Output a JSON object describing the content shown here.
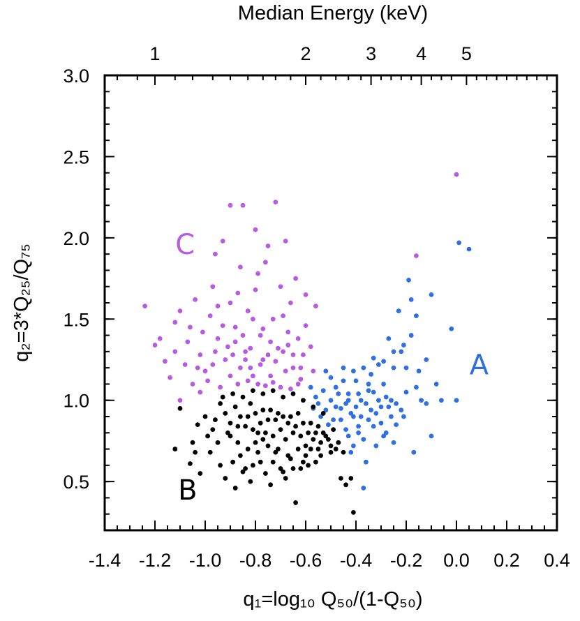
{
  "chart_data": {
    "type": "scatter",
    "xlabel": "q₁=log₁₀ Q₅₀/(1-Q₅₀)",
    "ylabel": "q₂=3*Q₂₅/Q₇₅",
    "top_axis_label": "Median Energy (keV)",
    "xlim": [
      -1.4,
      0.4
    ],
    "ylim": [
      0.2,
      3.0
    ],
    "x_ticks": [
      "-1.4",
      "-1.2",
      "-1.0",
      "-0.8",
      "-0.6",
      "-0.4",
      "-0.2",
      "0.0",
      "0.2",
      "0.4"
    ],
    "y_ticks": [
      "0.5",
      "1.0",
      "1.5",
      "2.0",
      "2.5",
      "3.0"
    ],
    "top_ticks": [
      {
        "label": "1",
        "q1": -1.2
      },
      {
        "label": "2",
        "q1": -0.6
      },
      {
        "label": "3",
        "q1": -0.34
      },
      {
        "label": "4",
        "q1": -0.14
      },
      {
        "label": "5",
        "q1": 0.04
      }
    ],
    "grid": false,
    "group_labels": [
      {
        "text": "A",
        "color": "#2f6fe0",
        "q1": 0.09,
        "q2": 1.22
      },
      {
        "text": "B",
        "color": "#000000",
        "q1": -1.07,
        "q2": 0.45
      },
      {
        "text": "C",
        "color": "#b65ce0",
        "q1": -1.08,
        "q2": 1.96
      }
    ],
    "series": [
      {
        "name": "C",
        "color": "#b65ce0",
        "points": [
          [
            -1.24,
            1.58
          ],
          [
            -1.18,
            1.38
          ],
          [
            -1.14,
            1.14
          ],
          [
            -1.2,
            1.34
          ],
          [
            -1.12,
            1.3
          ],
          [
            -1.1,
            1.55
          ],
          [
            -1.08,
            1.22
          ],
          [
            -1.06,
            1.45
          ],
          [
            -1.04,
            1.62
          ],
          [
            -1.05,
            1.1
          ],
          [
            -1.02,
            1.28
          ],
          [
            -1.0,
            1.18
          ],
          [
            -0.98,
            1.52
          ],
          [
            -0.97,
            1.7
          ],
          [
            -0.96,
            1.9
          ],
          [
            -0.95,
            1.38
          ],
          [
            -0.93,
            1.98
          ],
          [
            -0.92,
            1.25
          ],
          [
            -0.9,
            1.6
          ],
          [
            -0.9,
            2.2
          ],
          [
            -0.88,
            1.45
          ],
          [
            -0.86,
            1.82
          ],
          [
            -0.85,
            2.2
          ],
          [
            -0.84,
            1.3
          ],
          [
            -0.83,
            1.55
          ],
          [
            -0.82,
            1.2
          ],
          [
            -0.8,
            2.05
          ],
          [
            -0.8,
            1.68
          ],
          [
            -0.78,
            1.4
          ],
          [
            -0.77,
            1.25
          ],
          [
            -0.76,
            1.85
          ],
          [
            -0.75,
            1.95
          ],
          [
            -0.74,
            1.15
          ],
          [
            -0.73,
            1.5
          ],
          [
            -0.72,
            2.22
          ],
          [
            -0.71,
            1.32
          ],
          [
            -0.7,
            1.7
          ],
          [
            -0.68,
            1.18
          ],
          [
            -0.68,
            1.98
          ],
          [
            -0.67,
            1.42
          ],
          [
            -0.66,
            1.6
          ],
          [
            -0.65,
            1.28
          ],
          [
            -0.64,
            1.75
          ],
          [
            -0.62,
            1.2
          ],
          [
            -0.6,
            1.46
          ],
          [
            -0.6,
            1.65
          ],
          [
            -0.58,
            1.33
          ],
          [
            -0.56,
            1.58
          ],
          [
            -0.16,
            1.89
          ],
          [
            0.0,
            2.39
          ],
          [
            -1.1,
            1.0
          ],
          [
            -1.02,
            1.05
          ],
          [
            -0.99,
            1.12
          ],
          [
            -0.94,
            1.08
          ],
          [
            -0.9,
            1.15
          ],
          [
            -0.87,
            1.1
          ],
          [
            -0.83,
            1.12
          ],
          [
            -0.79,
            1.1
          ],
          [
            -0.76,
            1.09
          ],
          [
            -0.73,
            1.11
          ],
          [
            -0.7,
            1.08
          ],
          [
            -0.66,
            1.07
          ],
          [
            -0.63,
            1.1
          ],
          [
            -0.62,
            1.13
          ],
          [
            -1.16,
            1.24
          ],
          [
            -1.12,
            1.48
          ],
          [
            -1.07,
            1.36
          ],
          [
            -1.01,
            1.42
          ],
          [
            -0.95,
            1.58
          ],
          [
            -0.91,
            1.33
          ],
          [
            -0.87,
            1.66
          ],
          [
            -0.81,
            1.5
          ],
          [
            -0.79,
            1.78
          ],
          [
            -0.74,
            1.36
          ],
          [
            -0.69,
            1.52
          ],
          [
            -0.65,
            1.2
          ],
          [
            -0.61,
            1.28
          ],
          [
            -0.57,
            1.18
          ],
          [
            -0.97,
            1.22
          ],
          [
            -0.93,
            1.46
          ],
          [
            -0.89,
            1.28
          ],
          [
            -0.85,
            1.4
          ],
          [
            -0.82,
            1.32
          ],
          [
            -0.78,
            1.22
          ],
          [
            -0.75,
            1.28
          ],
          [
            -0.72,
            1.24
          ],
          [
            -0.69,
            1.3
          ],
          [
            -0.86,
            1.2
          ],
          [
            -0.84,
            1.25
          ],
          [
            -0.96,
            1.3
          ],
          [
            -1.03,
            1.2
          ],
          [
            -0.88,
            1.36
          ],
          [
            -0.81,
            1.15
          ],
          [
            -0.77,
            1.44
          ],
          [
            -0.67,
            1.34
          ],
          [
            -0.63,
            1.38
          ]
        ]
      },
      {
        "name": "A",
        "color": "#2f6fe0",
        "points": [
          [
            0.05,
            1.93
          ],
          [
            0.01,
            1.97
          ],
          [
            0.0,
            1.0
          ],
          [
            -0.02,
            1.44
          ],
          [
            -0.08,
            1.1
          ],
          [
            -0.06,
            1.0
          ],
          [
            -0.1,
            0.78
          ],
          [
            -0.1,
            1.65
          ],
          [
            -0.12,
            1.25
          ],
          [
            -0.14,
            1.0
          ],
          [
            -0.15,
            1.18
          ],
          [
            -0.16,
            1.52
          ],
          [
            -0.17,
            0.68
          ],
          [
            -0.18,
            1.62
          ],
          [
            -0.19,
            1.74
          ],
          [
            -0.2,
            1.05
          ],
          [
            -0.21,
            0.9
          ],
          [
            -0.22,
            1.3
          ],
          [
            -0.23,
            1.55
          ],
          [
            -0.24,
            0.85
          ],
          [
            -0.25,
            1.2
          ],
          [
            -0.26,
            1.0
          ],
          [
            -0.27,
            1.38
          ],
          [
            -0.28,
            0.8
          ],
          [
            -0.29,
            1.1
          ],
          [
            -0.3,
            0.96
          ],
          [
            -0.31,
            1.22
          ],
          [
            -0.32,
            0.72
          ],
          [
            -0.33,
            1.05
          ],
          [
            -0.34,
            1.16
          ],
          [
            -0.35,
            0.88
          ],
          [
            -0.36,
            0.62
          ],
          [
            -0.37,
            0.46
          ],
          [
            -0.38,
            1.0
          ],
          [
            -0.39,
            0.8
          ],
          [
            -0.4,
            1.12
          ],
          [
            -0.41,
            0.9
          ],
          [
            -0.42,
            0.68
          ],
          [
            -0.43,
            1.04
          ],
          [
            -0.44,
            0.82
          ],
          [
            -0.45,
            1.2
          ],
          [
            -0.46,
            0.95
          ],
          [
            -0.47,
            0.74
          ],
          [
            -0.48,
            1.08
          ],
          [
            -0.49,
            0.88
          ],
          [
            -0.5,
            1.0
          ],
          [
            -0.51,
            0.85
          ],
          [
            -0.52,
            0.94
          ],
          [
            -0.53,
            1.06
          ],
          [
            -0.54,
            0.9
          ],
          [
            -0.55,
            0.98
          ],
          [
            -0.56,
            1.02
          ],
          [
            -0.57,
            0.95
          ],
          [
            -0.58,
            1.08
          ],
          [
            -0.36,
            0.98
          ],
          [
            -0.34,
            0.94
          ],
          [
            -0.32,
            0.92
          ],
          [
            -0.3,
            0.86
          ],
          [
            -0.28,
            1.02
          ],
          [
            -0.26,
            0.9
          ],
          [
            -0.24,
            0.98
          ],
          [
            -0.22,
            0.94
          ],
          [
            -0.38,
            0.9
          ],
          [
            -0.4,
            0.96
          ],
          [
            -0.42,
            0.92
          ],
          [
            -0.44,
            0.98
          ],
          [
            -0.46,
            0.88
          ],
          [
            -0.48,
            0.96
          ],
          [
            -0.35,
            1.06
          ],
          [
            -0.31,
            1.0
          ],
          [
            -0.27,
            0.96
          ],
          [
            -0.33,
            0.84
          ],
          [
            -0.29,
            0.78
          ],
          [
            -0.25,
            0.74
          ],
          [
            -0.43,
            0.78
          ],
          [
            -0.41,
            0.72
          ],
          [
            -0.39,
            0.84
          ],
          [
            -0.37,
            0.76
          ],
          [
            -0.45,
            1.12
          ],
          [
            -0.41,
            1.18
          ],
          [
            -0.37,
            1.2
          ],
          [
            -0.33,
            1.26
          ],
          [
            -0.29,
            1.24
          ],
          [
            -0.25,
            1.3
          ],
          [
            -0.21,
            1.34
          ],
          [
            -0.18,
            1.4
          ],
          [
            -0.5,
            1.14
          ],
          [
            -0.52,
            1.18
          ],
          [
            -0.47,
            1.04
          ],
          [
            -0.43,
            1.0
          ],
          [
            -0.39,
            1.04
          ],
          [
            -0.35,
            1.1
          ],
          [
            -0.2,
            1.2
          ],
          [
            -0.16,
            1.08
          ],
          [
            -0.12,
            0.98
          ]
        ]
      },
      {
        "name": "B",
        "color": "#000000",
        "points": [
          [
            -1.06,
            0.61
          ],
          [
            -1.02,
            0.55
          ],
          [
            -1.03,
            0.85
          ],
          [
            -1.1,
            0.95
          ],
          [
            -1.12,
            0.7
          ],
          [
            -1.05,
            0.74
          ],
          [
            -0.98,
            0.68
          ],
          [
            -0.96,
            0.88
          ],
          [
            -0.94,
            0.6
          ],
          [
            -0.92,
            0.52
          ],
          [
            -0.9,
            0.78
          ],
          [
            -0.88,
            0.46
          ],
          [
            -0.86,
            0.66
          ],
          [
            -0.84,
            0.58
          ],
          [
            -0.82,
            0.5
          ],
          [
            -0.8,
            0.74
          ],
          [
            -0.78,
            0.62
          ],
          [
            -0.76,
            0.55
          ],
          [
            -0.74,
            0.48
          ],
          [
            -0.72,
            0.68
          ],
          [
            -0.7,
            0.58
          ],
          [
            -0.68,
            0.52
          ],
          [
            -0.66,
            0.64
          ],
          [
            -0.64,
            0.37
          ],
          [
            -0.62,
            0.58
          ],
          [
            -0.6,
            0.66
          ],
          [
            -0.58,
            0.7
          ],
          [
            -0.56,
            0.62
          ],
          [
            -0.54,
            0.66
          ],
          [
            -0.5,
            0.68
          ],
          [
            -0.46,
            0.52
          ],
          [
            -0.44,
            0.48
          ],
          [
            -0.41,
            0.31
          ],
          [
            -0.42,
            0.52
          ],
          [
            -0.94,
            0.98
          ],
          [
            -0.92,
            0.92
          ],
          [
            -0.9,
            0.86
          ],
          [
            -0.88,
            0.96
          ],
          [
            -0.86,
            0.9
          ],
          [
            -0.84,
            0.84
          ],
          [
            -0.82,
            0.98
          ],
          [
            -0.8,
            0.92
          ],
          [
            -0.78,
            0.86
          ],
          [
            -0.76,
            0.8
          ],
          [
            -0.74,
            0.94
          ],
          [
            -0.72,
            0.88
          ],
          [
            -0.7,
            0.82
          ],
          [
            -0.68,
            0.76
          ],
          [
            -0.66,
            0.9
          ],
          [
            -0.64,
            0.84
          ],
          [
            -0.62,
            0.78
          ],
          [
            -0.6,
            0.72
          ],
          [
            -0.58,
            0.86
          ],
          [
            -0.56,
            0.8
          ],
          [
            -0.54,
            0.74
          ],
          [
            -0.52,
            0.78
          ],
          [
            -0.5,
            0.72
          ],
          [
            -0.48,
            0.7
          ],
          [
            -0.93,
            1.02
          ],
          [
            -0.89,
            1.04
          ],
          [
            -0.85,
            1.02
          ],
          [
            -0.81,
            1.06
          ],
          [
            -0.77,
            1.04
          ],
          [
            -0.73,
            1.06
          ],
          [
            -0.69,
            1.02
          ],
          [
            -0.65,
            1.04
          ],
          [
            -0.61,
            1.0
          ],
          [
            -0.57,
            0.96
          ],
          [
            -0.53,
            0.92
          ],
          [
            -0.49,
            0.82
          ],
          [
            -0.91,
            0.8
          ],
          [
            -0.87,
            0.74
          ],
          [
            -0.83,
            0.7
          ],
          [
            -0.79,
            0.68
          ],
          [
            -0.75,
            0.72
          ],
          [
            -0.71,
            0.7
          ],
          [
            -0.67,
            0.66
          ],
          [
            -0.63,
            0.7
          ],
          [
            -0.59,
            0.6
          ],
          [
            -0.55,
            0.7
          ],
          [
            -0.95,
            0.74
          ],
          [
            -0.97,
            0.82
          ],
          [
            -1.0,
            0.9
          ],
          [
            -0.99,
            0.78
          ],
          [
            -1.04,
            0.68
          ],
          [
            -0.89,
            0.62
          ],
          [
            -0.85,
            0.56
          ],
          [
            -0.81,
            0.6
          ],
          [
            -0.77,
            0.76
          ],
          [
            -0.73,
            0.62
          ],
          [
            -0.69,
            0.56
          ],
          [
            -0.65,
            0.58
          ],
          [
            -0.61,
            0.62
          ],
          [
            -0.87,
            0.84
          ],
          [
            -0.83,
            0.9
          ],
          [
            -0.79,
            0.8
          ],
          [
            -0.75,
            0.88
          ],
          [
            -0.71,
            0.92
          ],
          [
            -0.67,
            0.86
          ],
          [
            -0.63,
            0.92
          ],
          [
            -0.59,
            0.8
          ],
          [
            -0.55,
            0.84
          ],
          [
            -0.51,
            0.76
          ],
          [
            -0.81,
            0.82
          ],
          [
            -0.77,
            0.94
          ],
          [
            -0.73,
            0.78
          ],
          [
            -0.69,
            0.9
          ],
          [
            -0.65,
            0.8
          ],
          [
            -0.61,
            0.86
          ],
          [
            -0.57,
            0.76
          ],
          [
            -0.53,
            0.8
          ],
          [
            -0.47,
            0.74
          ],
          [
            -0.45,
            0.68
          ]
        ]
      }
    ]
  }
}
